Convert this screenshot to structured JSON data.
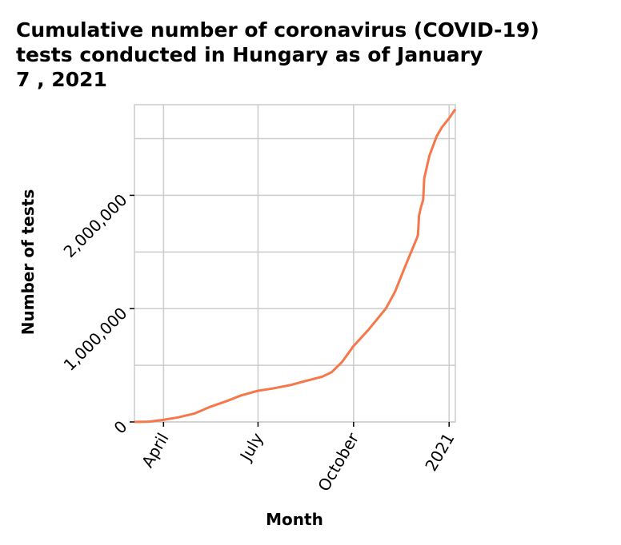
{
  "chart_data": {
    "type": "line",
    "title_lines": [
      "Cumulative number of coronavirus (COVID-19)",
      "tests conducted in Hungary as of January",
      "7 , 2021"
    ],
    "xlabel": "Month",
    "ylabel": "Number of tests",
    "x_ticks": [
      {
        "label": "April",
        "date": "2020-04-01"
      },
      {
        "label": "July",
        "date": "2020-07-01"
      },
      {
        "label": "October",
        "date": "2020-10-01"
      },
      {
        "label": "2021",
        "date": "2021-01-01"
      }
    ],
    "y_ticks": [
      {
        "label": "0",
        "value": 0
      },
      {
        "label": "1,000,000",
        "value": 1000000
      },
      {
        "label": "2,000,000",
        "value": 2000000
      }
    ],
    "y_minor_gridlines": [
      500000,
      1500000,
      2500000
    ],
    "xlim": [
      "2020-03-04",
      "2021-01-07"
    ],
    "ylim": [
      0,
      2800000
    ],
    "grid": true,
    "series": [
      {
        "color": "#f5774a",
        "points": [
          {
            "x": "2020-03-04",
            "y": 0
          },
          {
            "x": "2020-03-18",
            "y": 3000
          },
          {
            "x": "2020-04-01",
            "y": 18000
          },
          {
            "x": "2020-04-15",
            "y": 40000
          },
          {
            "x": "2020-05-01",
            "y": 75000
          },
          {
            "x": "2020-05-15",
            "y": 130000
          },
          {
            "x": "2020-06-01",
            "y": 185000
          },
          {
            "x": "2020-06-15",
            "y": 235000
          },
          {
            "x": "2020-07-01",
            "y": 275000
          },
          {
            "x": "2020-07-15",
            "y": 295000
          },
          {
            "x": "2020-08-01",
            "y": 325000
          },
          {
            "x": "2020-08-15",
            "y": 360000
          },
          {
            "x": "2020-09-01",
            "y": 400000
          },
          {
            "x": "2020-09-10",
            "y": 440000
          },
          {
            "x": "2020-09-20",
            "y": 530000
          },
          {
            "x": "2020-10-01",
            "y": 670000
          },
          {
            "x": "2020-10-15",
            "y": 810000
          },
          {
            "x": "2020-11-01",
            "y": 1000000
          },
          {
            "x": "2020-11-10",
            "y": 1150000
          },
          {
            "x": "2020-11-20",
            "y": 1380000
          },
          {
            "x": "2020-11-30",
            "y": 1600000
          },
          {
            "x": "2020-12-02",
            "y": 1650000
          },
          {
            "x": "2020-12-03",
            "y": 1820000
          },
          {
            "x": "2020-12-05",
            "y": 1900000
          },
          {
            "x": "2020-12-07",
            "y": 1960000
          },
          {
            "x": "2020-12-08",
            "y": 2150000
          },
          {
            "x": "2020-12-13",
            "y": 2350000
          },
          {
            "x": "2020-12-20",
            "y": 2520000
          },
          {
            "x": "2020-12-25",
            "y": 2600000
          },
          {
            "x": "2021-01-01",
            "y": 2680000
          },
          {
            "x": "2021-01-07",
            "y": 2760000
          }
        ]
      }
    ]
  }
}
